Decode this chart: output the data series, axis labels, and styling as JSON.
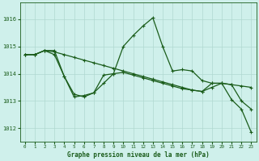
{
  "title": "Graphe pression niveau de la mer (hPa)",
  "bg_color": "#cff0eb",
  "line_color": "#1a5c1a",
  "grid_color": "#b0d8d0",
  "xlim": [
    -0.5,
    23.5
  ],
  "ylim": [
    1011.5,
    1016.6
  ],
  "yticks": [
    1012,
    1013,
    1014,
    1015,
    1016
  ],
  "xticks": [
    0,
    1,
    2,
    3,
    4,
    5,
    6,
    7,
    8,
    9,
    10,
    11,
    12,
    13,
    14,
    15,
    16,
    17,
    18,
    19,
    20,
    21,
    22,
    23
  ],
  "series1_x": [
    0,
    1,
    2,
    3,
    4,
    5,
    6,
    7,
    8,
    9,
    10,
    11,
    12,
    13,
    14,
    15,
    16,
    17,
    18,
    19,
    20,
    21,
    22,
    23
  ],
  "series1_y": [
    1014.7,
    1014.7,
    1014.85,
    1014.85,
    1013.9,
    1013.25,
    1013.15,
    1013.3,
    1013.95,
    1014.0,
    1015.0,
    1015.4,
    1015.75,
    1016.05,
    1015.0,
    1014.1,
    1014.15,
    1014.1,
    1013.75,
    1013.65,
    1013.65,
    1013.05,
    1012.7,
    1011.85
  ],
  "series2_x": [
    0,
    1,
    2,
    3,
    4,
    5,
    6,
    7,
    8,
    9,
    10,
    11,
    12,
    13,
    14,
    15,
    16,
    17,
    18,
    19,
    20,
    21,
    22,
    23
  ],
  "series2_y": [
    1014.7,
    1014.7,
    1014.85,
    1014.8,
    1014.7,
    1014.6,
    1014.5,
    1014.4,
    1014.3,
    1014.2,
    1014.1,
    1014.0,
    1013.9,
    1013.8,
    1013.7,
    1013.6,
    1013.5,
    1013.4,
    1013.35,
    1013.65,
    1013.65,
    1013.6,
    1013.55,
    1013.5
  ],
  "series3_x": [
    0,
    1,
    2,
    3,
    4,
    5,
    6,
    7,
    8,
    9,
    10,
    11,
    12,
    13,
    14,
    15,
    16,
    17,
    18,
    19,
    20,
    21,
    22,
    23
  ],
  "series3_y": [
    1014.7,
    1014.7,
    1014.85,
    1014.7,
    1013.9,
    1013.15,
    1013.2,
    1013.3,
    1013.65,
    1014.0,
    1014.05,
    1013.95,
    1013.85,
    1013.75,
    1013.65,
    1013.55,
    1013.45,
    1013.4,
    1013.35,
    1013.5,
    1013.65,
    1013.6,
    1013.0,
    1012.7
  ]
}
